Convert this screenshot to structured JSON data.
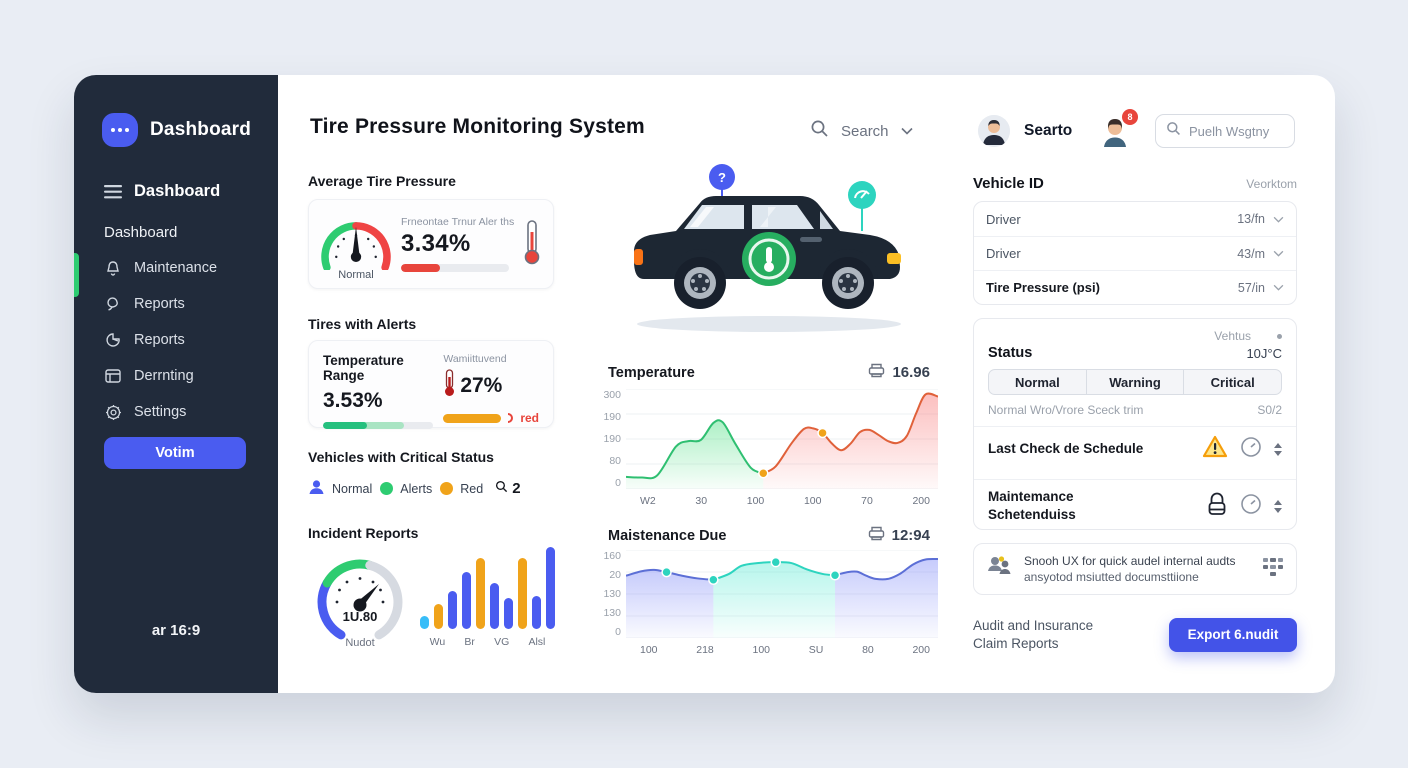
{
  "colors": {
    "accent": "#4a5cf0",
    "green": "#2ecc71",
    "red": "#e8453c",
    "orange": "#f0a31a",
    "teal": "#2dd4bf",
    "sidebar_bg": "#212b3b"
  },
  "sidebar": {
    "logo_label": "Dashboard",
    "nav": [
      {
        "label": "Dashboard"
      },
      {
        "label": "Dashboard"
      },
      {
        "label": "Maintenance"
      },
      {
        "label": "Reports"
      },
      {
        "label": "Reports"
      },
      {
        "label": "Derrnting"
      },
      {
        "label": "Settings"
      }
    ],
    "action_button": "Votim",
    "footer": "ar 16:9"
  },
  "header": {
    "title": "Tire Pressure Monitoring System",
    "search_label": "Search",
    "user_name": "Searto",
    "notification_badge": "8",
    "search_placeholder": "Puelh Wsgtny"
  },
  "left": {
    "avg_pressure": {
      "title": "Average Tire Pressure",
      "subtitle": "Frneontae Trnur Aler ths",
      "value": "3.34%",
      "gauge_label": "Normal",
      "progress_pct": 36
    },
    "tires_alerts": {
      "title": "Tires with Alerts",
      "range_title": "Temperature Range",
      "range_value": "3.53%",
      "green_light_pct": 74,
      "green_dark_pct": 40,
      "warn_label": "Wamiittuvend",
      "warn_value": "27%",
      "warn_tag": "red"
    },
    "critical": {
      "title": "Vehicles with Critical Status",
      "legend": [
        {
          "label": "Normal"
        },
        {
          "label": "Alerts"
        },
        {
          "label": "Red"
        }
      ],
      "count": "2"
    },
    "incidents": {
      "title": "Incident Reports",
      "gauge_value": "1U.80",
      "gauge_label": "Nudot"
    }
  },
  "car": {
    "marker_question": "?"
  },
  "right": {
    "vehicle_id": {
      "title": "Vehicle ID",
      "hint": "Veorktom",
      "rows": [
        {
          "label": "Driver",
          "value": "13/fn"
        },
        {
          "label": "Driver",
          "value": "43/m"
        },
        {
          "label": "Tire Pressure (psi)",
          "value": "57/in"
        }
      ]
    },
    "status": {
      "corner": "Vehtus",
      "title": "Status",
      "temp": "10J°C",
      "tabs": [
        "Normal",
        "Warning",
        "Critical"
      ],
      "note": "Normal Wro/Vrore Sceck trim",
      "note_value": "S0/2",
      "rows": [
        {
          "title": "Last Check de Schedule"
        },
        {
          "title": "Maintemance Schetenduiss"
        }
      ]
    },
    "note_card": {
      "line1": "Snooh UX for quick audel internal audts",
      "line2": "ansyotod msiutted documsttiione"
    },
    "footer": {
      "line1": "Audit and Insurance",
      "line2": "Claim Reports",
      "button": "Export 6.nudit"
    }
  },
  "chart_data": [
    {
      "id": "temperature",
      "type": "area",
      "title": "Temperature",
      "value_badge": "16.96",
      "ymax": 330,
      "y_ticks": [
        "300",
        "190",
        "190",
        "80",
        "0"
      ],
      "x_ticks": [
        "W2",
        "30",
        "100",
        "100",
        "70",
        "200"
      ],
      "grid": true,
      "segments": [
        {
          "color": "#2fbf71",
          "fill": "#4ade80",
          "points": [
            [
              0,
              40
            ],
            [
              5,
              38
            ],
            [
              10,
              45
            ],
            [
              16,
              140
            ],
            [
              20,
              158
            ],
            [
              24,
              162
            ],
            [
              28,
              218
            ],
            [
              31,
              220
            ],
            [
              35,
              150
            ],
            [
              40,
              70
            ],
            [
              44,
              52
            ]
          ]
        },
        {
          "color": "#e0613a",
          "fill": "#f87171",
          "points": [
            [
              44,
              52
            ],
            [
              48,
              75
            ],
            [
              53,
              150
            ],
            [
              57,
              198
            ],
            [
              60,
              200
            ],
            [
              63,
              185
            ],
            [
              66,
              150
            ],
            [
              69,
              128
            ],
            [
              72,
              150
            ],
            [
              75,
              188
            ],
            [
              78,
              195
            ],
            [
              81,
              178
            ],
            [
              84,
              158
            ],
            [
              87,
              152
            ],
            [
              90,
              175
            ],
            [
              93,
              250
            ],
            [
              96,
              312
            ],
            [
              100,
              305
            ]
          ]
        }
      ],
      "dots": [
        {
          "x": 44,
          "y": 52,
          "color": "#f0a31a"
        },
        {
          "x": 63,
          "y": 185,
          "color": "#f0a31a"
        }
      ]
    },
    {
      "id": "maintenance_due",
      "type": "area",
      "title": "Maistenance Due",
      "value_badge": "12:94",
      "ymax": 195,
      "y_ticks": [
        "160",
        "20",
        "130",
        "130",
        "0"
      ],
      "x_ticks": [
        "100",
        "218",
        "100",
        "SU",
        "80",
        "200"
      ],
      "grid": true,
      "segments": [
        {
          "color": "#5c6fd6",
          "fill": "#818cf8",
          "points": [
            [
              0,
              138
            ],
            [
              5,
              148
            ],
            [
              9,
              151
            ],
            [
              13,
              146
            ],
            [
              18,
              138
            ],
            [
              23,
              132
            ],
            [
              28,
              129
            ]
          ]
        },
        {
          "color": "#2dd4bf",
          "fill": "#5eead4",
          "points": [
            [
              28,
              129
            ],
            [
              33,
              142
            ],
            [
              37,
              160
            ],
            [
              42,
              166
            ],
            [
              48,
              168
            ],
            [
              53,
              166
            ],
            [
              58,
              152
            ],
            [
              63,
              142
            ],
            [
              67,
              139
            ]
          ]
        },
        {
          "color": "#5c6fd6",
          "fill": "#818cf8",
          "points": [
            [
              67,
              139
            ],
            [
              71,
              146
            ],
            [
              74,
              147
            ],
            [
              77,
              138
            ],
            [
              80,
              131
            ],
            [
              84,
              131
            ],
            [
              88,
              143
            ],
            [
              92,
              163
            ],
            [
              96,
              174
            ],
            [
              100,
              175
            ]
          ]
        }
      ],
      "dots": [
        {
          "x": 13,
          "y": 146,
          "color": "#2dd4bf"
        },
        {
          "x": 28,
          "y": 129,
          "color": "#2dd4bf"
        },
        {
          "x": 48,
          "y": 168,
          "color": "#2dd4bf"
        },
        {
          "x": 67,
          "y": 139,
          "color": "#2dd4bf"
        }
      ]
    },
    {
      "id": "incident_reports",
      "type": "bar",
      "labels": [
        "Wu",
        "Br",
        "VG",
        "Alsl"
      ],
      "bars": [
        {
          "v": 16,
          "color": "#38bdf8"
        },
        {
          "v": 30,
          "color": "#f0a31a"
        },
        {
          "v": 46,
          "color": "#4a5cf0"
        },
        {
          "v": 70,
          "color": "#4a5cf0"
        },
        {
          "v": 86,
          "color": "#f0a31a"
        },
        {
          "v": 56,
          "color": "#4a5cf0"
        },
        {
          "v": 38,
          "color": "#4a5cf0"
        },
        {
          "v": 86,
          "color": "#f0a31a"
        },
        {
          "v": 40,
          "color": "#4a5cf0"
        },
        {
          "v": 100,
          "color": "#4a5cf0"
        }
      ]
    }
  ]
}
